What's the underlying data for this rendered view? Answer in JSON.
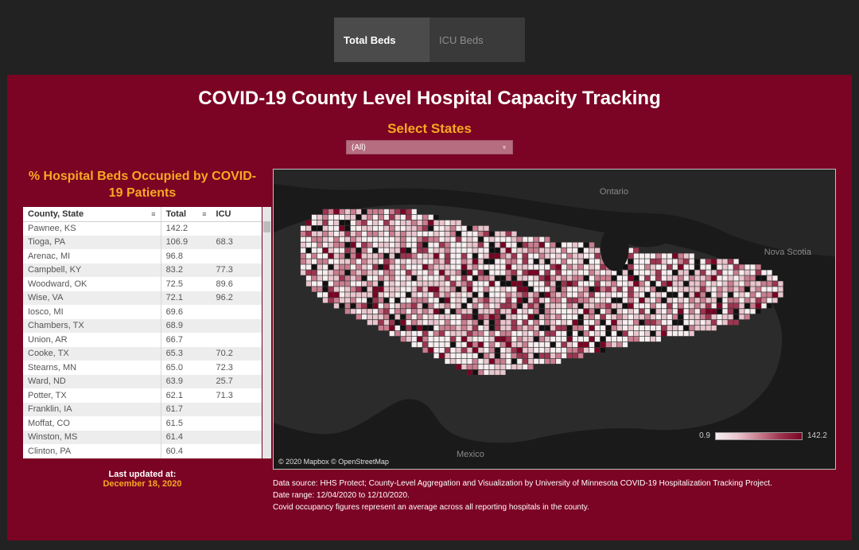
{
  "tabs": [
    {
      "label": "Total Beds",
      "active": true
    },
    {
      "label": "ICU Beds",
      "active": false
    }
  ],
  "title": "COVID-19 County Level Hospital Capacity Tracking",
  "select": {
    "label": "Select States",
    "value": "(All)"
  },
  "table": {
    "title": "% Hospital Beds Occupied by COVID-19 Patients",
    "columns": [
      "County, State",
      "Total",
      "ICU"
    ],
    "rows": [
      {
        "county": "Pawnee, KS",
        "total": "142.2",
        "icu": ""
      },
      {
        "county": "Tioga, PA",
        "total": "106.9",
        "icu": "68.3"
      },
      {
        "county": "Arenac, MI",
        "total": "96.8",
        "icu": ""
      },
      {
        "county": "Campbell, KY",
        "total": "83.2",
        "icu": "77.3"
      },
      {
        "county": "Woodward, OK",
        "total": "72.5",
        "icu": "89.6"
      },
      {
        "county": "Wise, VA",
        "total": "72.1",
        "icu": "96.2"
      },
      {
        "county": "Iosco, MI",
        "total": "69.6",
        "icu": ""
      },
      {
        "county": "Chambers, TX",
        "total": "68.9",
        "icu": ""
      },
      {
        "county": "Union, AR",
        "total": "66.7",
        "icu": ""
      },
      {
        "county": "Cooke, TX",
        "total": "65.3",
        "icu": "70.2"
      },
      {
        "county": "Stearns, MN",
        "total": "65.0",
        "icu": "72.3"
      },
      {
        "county": "Ward, ND",
        "total": "63.9",
        "icu": "25.7"
      },
      {
        "county": "Potter, TX",
        "total": "62.1",
        "icu": "71.3"
      },
      {
        "county": "Franklin, IA",
        "total": "61.7",
        "icu": ""
      },
      {
        "county": "Moffat, CO",
        "total": "61.5",
        "icu": ""
      },
      {
        "county": "Winston, MS",
        "total": "61.4",
        "icu": ""
      },
      {
        "county": "Clinton, PA",
        "total": "60.4",
        "icu": ""
      }
    ]
  },
  "updated": {
    "label": "Last updated at:",
    "date": "December 18, 2020"
  },
  "map": {
    "labels": {
      "ontario": "Ontario",
      "novascotia": "Nova Scotia",
      "mexico": "Mexico"
    },
    "legend": {
      "min": "0.9",
      "max": "142.2"
    },
    "attribution": "© 2020 Mapbox  © OpenStreetMap",
    "background_color": "#1a1a1a",
    "land_color": "#262626",
    "choropleth_palette": [
      "#f7eef0",
      "#e9c6ce",
      "#c97e8f",
      "#9d3550",
      "#7b0323"
    ]
  },
  "footer": {
    "line1": "Data source: HHS Protect; County-Level Aggregation and Visualization by University of Minnesota COVID-19 Hospitalization Tracking Project.",
    "line2": "Date range: 12/04/2020 to 12/10/2020.",
    "line3": "Covid occupancy figures represent an average across all reporting hospitals in the county."
  },
  "colors": {
    "page_bg": "#222222",
    "panel_bg": "#7b0323",
    "accent": "#f7a823"
  }
}
